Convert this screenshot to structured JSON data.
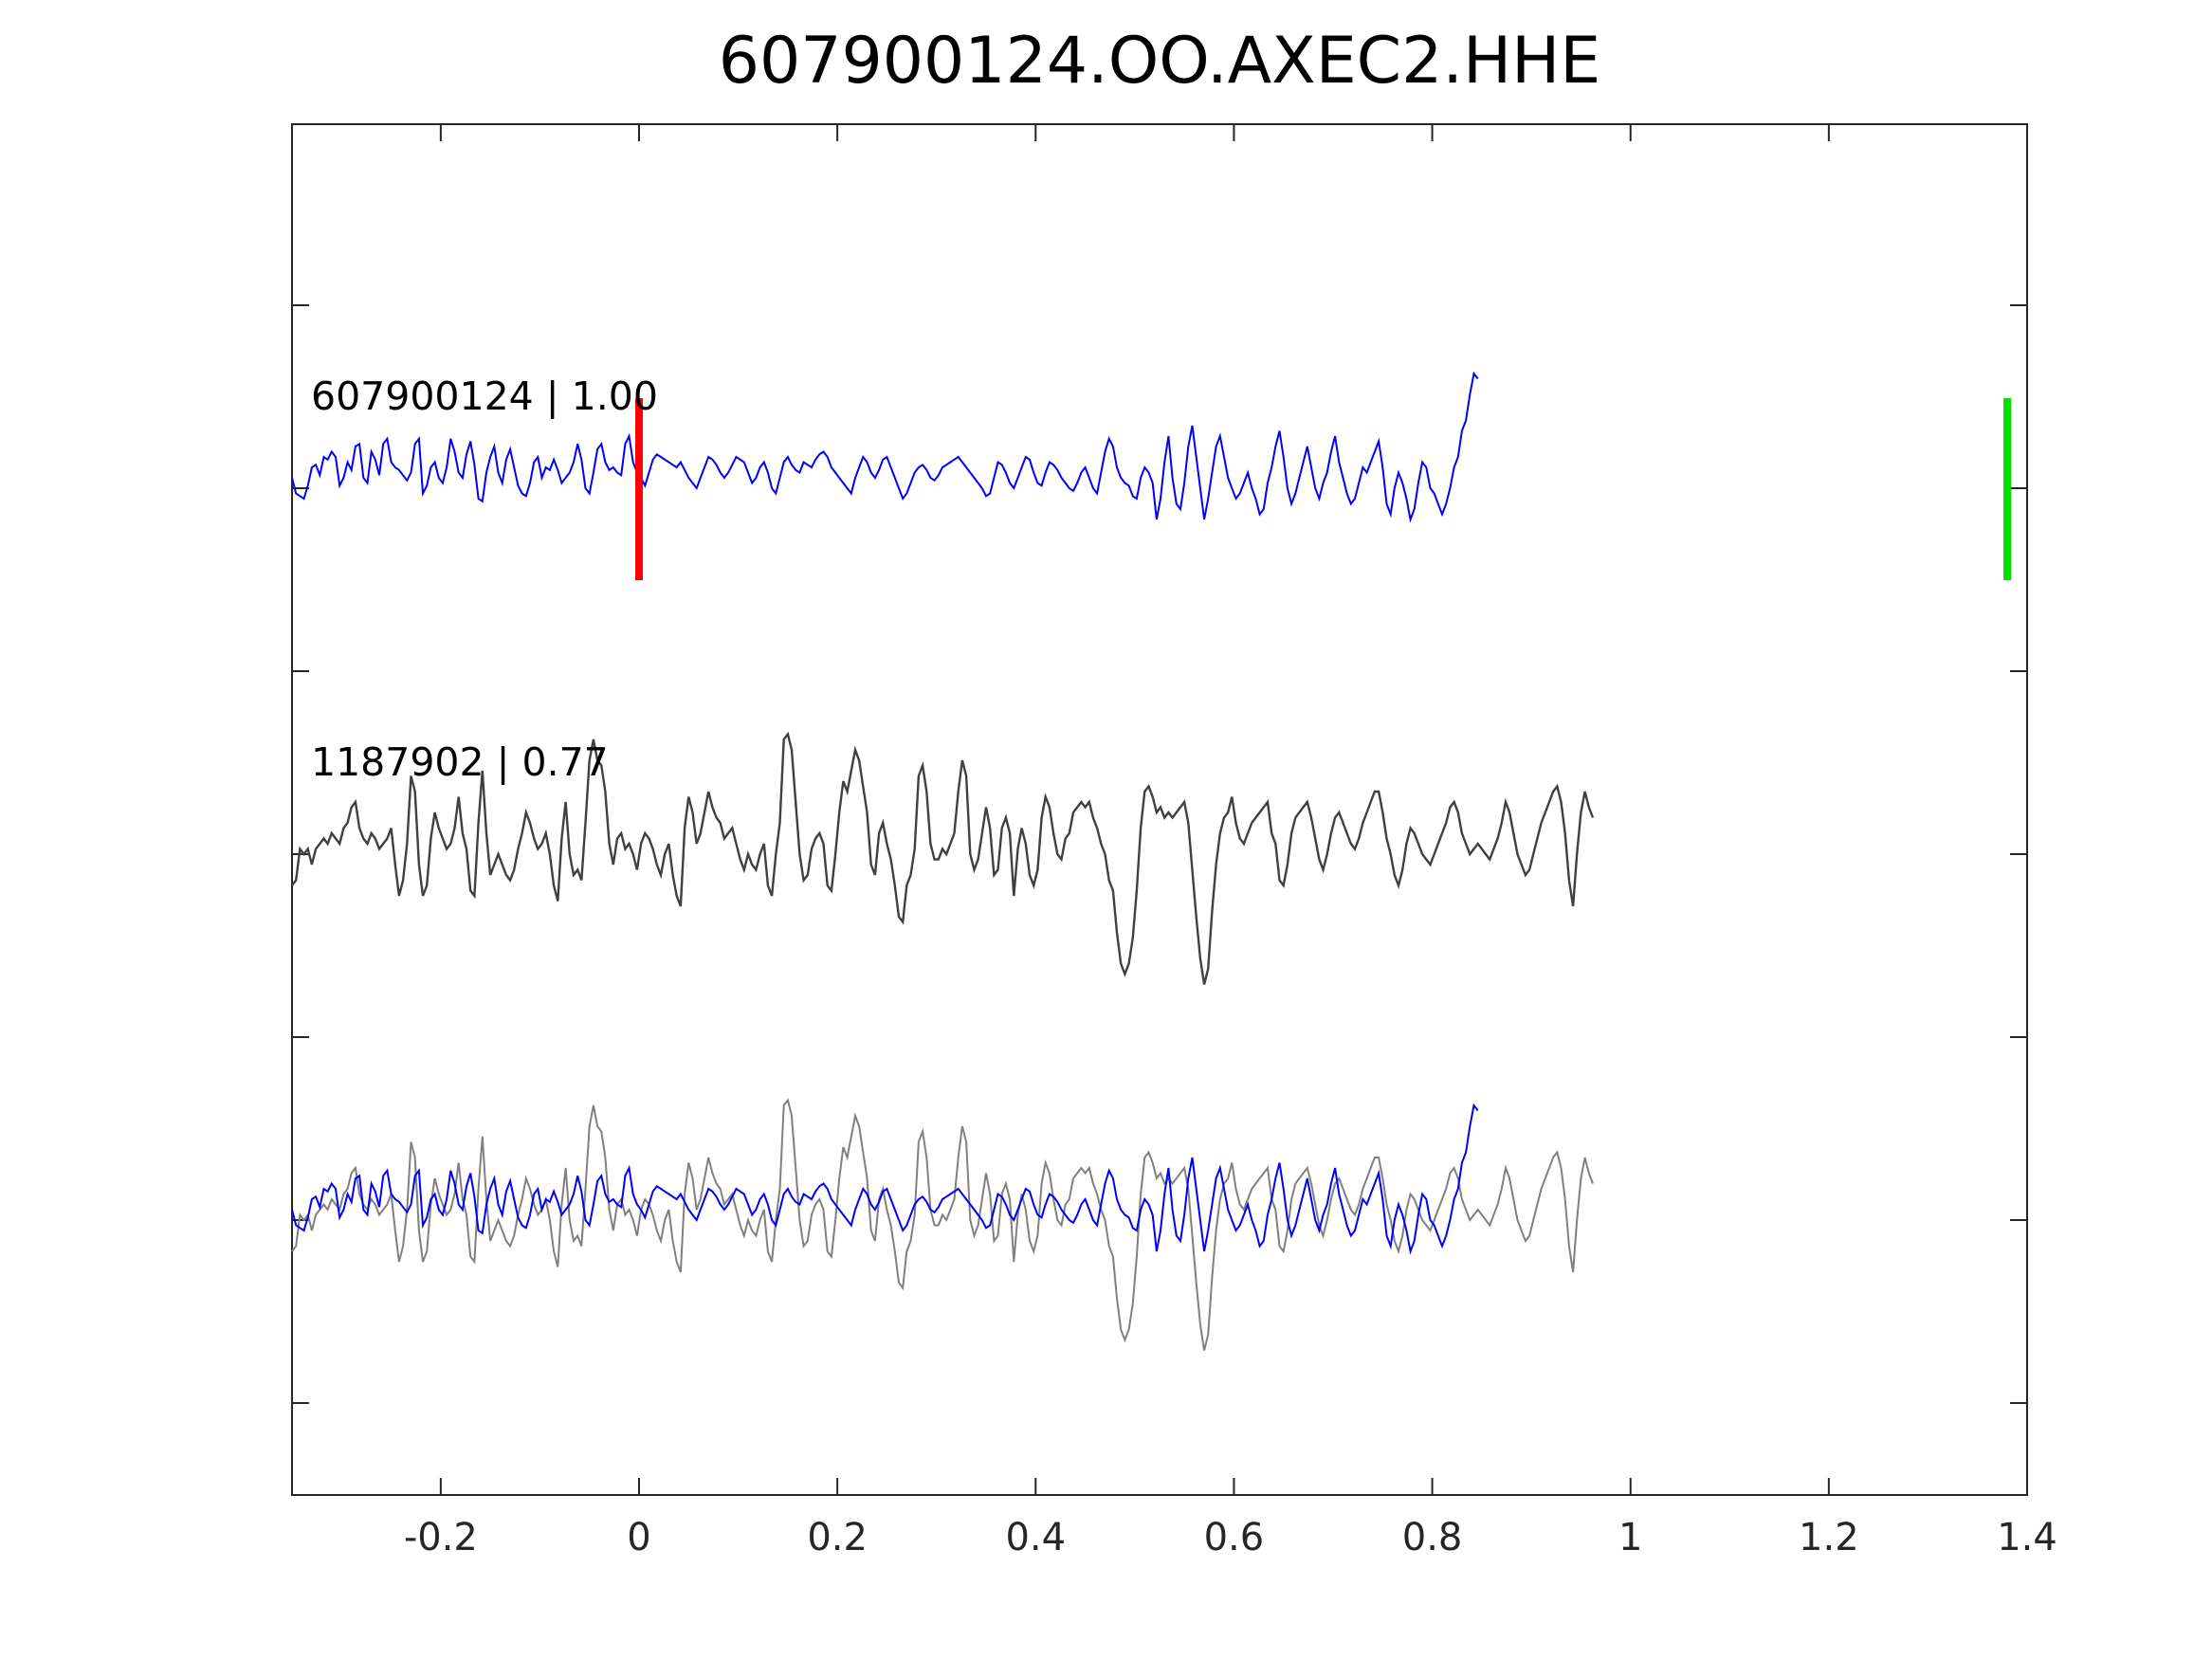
{
  "chart_data": {
    "type": "line",
    "title": "607900124.OO.AXEC2.HHE",
    "xlabel": "",
    "ylabel": "",
    "xlim": [
      -0.35,
      1.4
    ],
    "x_ticks": [
      -0.2,
      0,
      0.2,
      0.4,
      0.6,
      0.8,
      1,
      1.2,
      1.4
    ],
    "x_tick_labels": [
      "-0.2",
      "0",
      "0.2",
      "0.4",
      "0.6",
      "0.8",
      "1",
      "1.2",
      "1.4"
    ],
    "y_tick_count": 7,
    "grid": false,
    "colors": {
      "template": "#0000ff",
      "detection": "#404040",
      "detection_overlay": "#808080",
      "pick_start": "#ff0000",
      "pick_end": "#00dd00",
      "axes": "#262626"
    },
    "traces": [
      {
        "label": "607900124 | 1.00",
        "color": "#0000ff",
        "role": "template",
        "x_start": -0.35,
        "dt": 0.004,
        "values": [
          0.2,
          -0.1,
          -0.15,
          -0.2,
          0.05,
          0.4,
          0.45,
          0.25,
          0.6,
          0.55,
          0.7,
          0.6,
          0.05,
          0.2,
          0.5,
          0.35,
          0.8,
          0.85,
          0.2,
          0.1,
          0.7,
          0.55,
          0.25,
          0.85,
          0.95,
          0.5,
          0.4,
          0.35,
          0.25,
          0.15,
          0.3,
          0.85,
          0.95,
          -0.1,
          0.05,
          0.4,
          0.5,
          0.2,
          0.1,
          0.4,
          0.95,
          0.7,
          0.3,
          0.2,
          0.65,
          0.9,
          0.45,
          -0.2,
          -0.25,
          0.3,
          0.6,
          0.8,
          0.3,
          0.1,
          0.55,
          0.75,
          0.4,
          0.05,
          -0.1,
          -0.15,
          0.1,
          0.5,
          0.6,
          0.2,
          0.4,
          0.35,
          0.55,
          0.35,
          0.1,
          0.2,
          0.3,
          0.5,
          0.85,
          0.55,
          0.0,
          -0.1,
          0.3,
          0.75,
          0.85,
          0.5,
          0.35,
          0.4,
          0.3,
          0.25,
          0.85,
          1.0,
          0.5,
          0.3,
          0.2,
          0.05,
          0.3,
          0.55,
          0.65,
          0.6,
          0.55,
          0.5,
          0.45,
          0.4,
          0.5,
          0.35,
          0.2,
          0.1,
          0.0,
          0.2,
          0.4,
          0.6,
          0.55,
          0.45,
          0.3,
          0.2,
          0.3,
          0.45,
          0.6,
          0.55,
          0.5,
          0.3,
          0.1,
          0.2,
          0.4,
          0.5,
          0.3,
          0.0,
          -0.1,
          0.2,
          0.5,
          0.6,
          0.45,
          0.35,
          0.3,
          0.5,
          0.45,
          0.4,
          0.55,
          0.65,
          0.7,
          0.6,
          0.4,
          0.3,
          0.2,
          0.1,
          0.0,
          -0.1,
          0.2,
          0.4,
          0.6,
          0.5,
          0.3,
          0.2,
          0.35,
          0.55,
          0.6,
          0.4,
          0.2,
          0.0,
          -0.2,
          -0.1,
          0.1,
          0.3,
          0.4,
          0.45,
          0.35,
          0.2,
          0.15,
          0.25,
          0.4,
          0.45,
          0.5,
          0.55,
          0.6,
          0.5,
          0.4,
          0.3,
          0.2,
          0.1,
          0.0,
          -0.15,
          -0.1,
          0.2,
          0.5,
          0.45,
          0.3,
          0.1,
          0.0,
          0.2,
          0.4,
          0.6,
          0.55,
          0.3,
          0.1,
          0.05,
          0.3,
          0.5,
          0.45,
          0.35,
          0.2,
          0.1,
          0.0,
          -0.05,
          0.1,
          0.3,
          0.4,
          0.2,
          0.0,
          -0.1,
          0.3,
          0.7,
          0.95,
          0.8,
          0.4,
          0.2,
          0.1,
          0.05,
          -0.15,
          -0.2,
          0.2,
          0.4,
          0.3,
          0.1,
          -0.6,
          -0.2,
          0.5,
          1.0,
          0.2,
          -0.3,
          -0.4,
          0.1,
          0.8,
          1.2,
          0.6,
          0.0,
          -0.6,
          -0.2,
          0.3,
          0.8,
          1.0,
          0.6,
          0.2,
          0.0,
          -0.2,
          -0.1,
          0.1,
          0.3,
          0.0,
          -0.2,
          -0.5,
          -0.4,
          0.1,
          0.4,
          0.8,
          1.1,
          0.6,
          0.0,
          -0.3,
          -0.1,
          0.2,
          0.5,
          0.8,
          0.4,
          0.0,
          -0.2,
          0.1,
          0.3,
          0.7,
          1.0,
          0.5,
          0.2,
          -0.1,
          -0.3,
          -0.2,
          0.1,
          0.4,
          0.3,
          0.5,
          0.7,
          0.9,
          0.4,
          -0.3,
          -0.5,
          0.0,
          0.3,
          0.1,
          -0.2,
          -0.6,
          -0.4,
          0.1,
          0.5,
          0.4,
          0.0,
          -0.1,
          -0.3,
          -0.5,
          -0.3,
          0.0,
          0.4,
          0.6,
          1.1,
          1.3,
          1.8,
          2.2,
          2.1
        ]
      },
      {
        "label": "1187902 | 0.77",
        "color": "#404040",
        "role": "detection",
        "x_start": -0.35,
        "dt": 0.004,
        "values": [
          -0.6,
          -0.5,
          0.1,
          0.0,
          0.1,
          -0.2,
          0.1,
          0.2,
          0.3,
          0.2,
          0.4,
          0.3,
          0.2,
          0.5,
          0.6,
          0.9,
          1.0,
          0.5,
          0.3,
          0.2,
          0.4,
          0.3,
          0.1,
          0.2,
          0.3,
          0.5,
          -0.2,
          -0.8,
          -0.5,
          0.2,
          1.5,
          1.2,
          -0.2,
          -0.8,
          -0.6,
          0.3,
          0.8,
          0.5,
          0.3,
          0.1,
          0.2,
          0.5,
          1.1,
          0.4,
          0.1,
          -0.7,
          -0.8,
          0.6,
          1.6,
          0.4,
          -0.4,
          -0.2,
          0.0,
          -0.2,
          -0.4,
          -0.5,
          -0.3,
          0.1,
          0.4,
          0.8,
          0.6,
          0.3,
          0.1,
          0.2,
          0.4,
          0.0,
          -0.6,
          -0.9,
          0.3,
          1.0,
          0.0,
          -0.4,
          -0.3,
          -0.5,
          0.6,
          1.8,
          2.2,
          1.8,
          1.7,
          1.2,
          0.2,
          -0.2,
          0.3,
          0.4,
          0.1,
          0.2,
          0.0,
          -0.3,
          0.2,
          0.4,
          0.3,
          0.1,
          -0.2,
          -0.4,
          0.0,
          0.2,
          -0.4,
          -0.8,
          -1.0,
          0.5,
          1.1,
          0.8,
          0.2,
          0.4,
          0.8,
          1.2,
          0.9,
          0.7,
          0.6,
          0.3,
          0.4,
          0.5,
          0.2,
          -0.1,
          -0.3,
          0.0,
          -0.2,
          -0.3,
          0.0,
          0.2,
          -0.6,
          -0.8,
          0.0,
          0.6,
          2.2,
          2.3,
          2.0,
          1.0,
          0.0,
          -0.5,
          -0.4,
          0.1,
          0.3,
          0.4,
          0.2,
          -0.6,
          -0.7,
          0.0,
          0.8,
          1.4,
          1.2,
          1.6,
          2.0,
          1.8,
          1.3,
          0.8,
          -0.2,
          -0.4,
          0.4,
          0.6,
          0.2,
          -0.1,
          -0.6,
          -1.2,
          -1.3,
          -0.6,
          -0.4,
          0.1,
          1.5,
          1.7,
          1.2,
          0.2,
          -0.1,
          -0.1,
          0.1,
          0.0,
          0.2,
          0.4,
          1.2,
          1.8,
          1.5,
          0.0,
          -0.3,
          -0.1,
          0.4,
          0.9,
          0.5,
          -0.4,
          -0.3,
          0.5,
          0.7,
          0.4,
          -0.8,
          0.1,
          0.5,
          0.2,
          -0.4,
          -0.6,
          -0.3,
          0.7,
          1.1,
          0.9,
          0.4,
          0.0,
          -0.1,
          0.3,
          0.4,
          0.8,
          0.9,
          1.0,
          0.9,
          1.0,
          0.7,
          0.5,
          0.2,
          0.0,
          -0.5,
          -0.7,
          -1.5,
          -2.1,
          -2.3,
          -2.1,
          -1.6,
          -0.7,
          0.5,
          1.2,
          1.3,
          1.1,
          0.8,
          0.9,
          0.7,
          0.8,
          0.7,
          0.8,
          0.9,
          1.0,
          0.6,
          -0.3,
          -1.2,
          -2.0,
          -2.5,
          -2.2,
          -1.1,
          -0.2,
          0.4,
          0.7,
          0.8,
          1.1,
          0.6,
          0.3,
          0.2,
          0.4,
          0.6,
          0.7,
          0.8,
          0.9,
          1.0,
          0.4,
          0.2,
          -0.5,
          -0.6,
          -0.2,
          0.4,
          0.7,
          0.8,
          0.9,
          1.0,
          0.7,
          0.3,
          -0.1,
          -0.3,
          0.0,
          0.4,
          0.7,
          0.8,
          0.6,
          0.4,
          0.2,
          0.1,
          0.3,
          0.6,
          0.8,
          1.0,
          1.2,
          1.2,
          0.8,
          0.3,
          0.0,
          -0.4,
          -0.6,
          -0.3,
          0.2,
          0.5,
          0.4,
          0.2,
          0.0,
          -0.1,
          -0.2,
          0.0,
          0.2,
          0.4,
          0.6,
          0.9,
          1.0,
          0.8,
          0.4,
          0.2,
          0.0,
          0.1,
          0.2,
          0.1,
          0.0,
          -0.1,
          0.1,
          0.3,
          0.6,
          1.0,
          0.8,
          0.4,
          0.0,
          -0.2,
          -0.4,
          -0.3,
          0.0,
          0.3,
          0.6,
          0.8,
          1.0,
          1.2,
          1.3,
          1.0,
          0.4,
          -0.5,
          -1.0,
          0.0,
          0.8,
          1.2,
          0.9,
          0.7
        ]
      }
    ],
    "picks": [
      {
        "x": 0.0,
        "color": "#ff0000"
      },
      {
        "x": 1.38,
        "color": "#00dd00"
      }
    ]
  }
}
